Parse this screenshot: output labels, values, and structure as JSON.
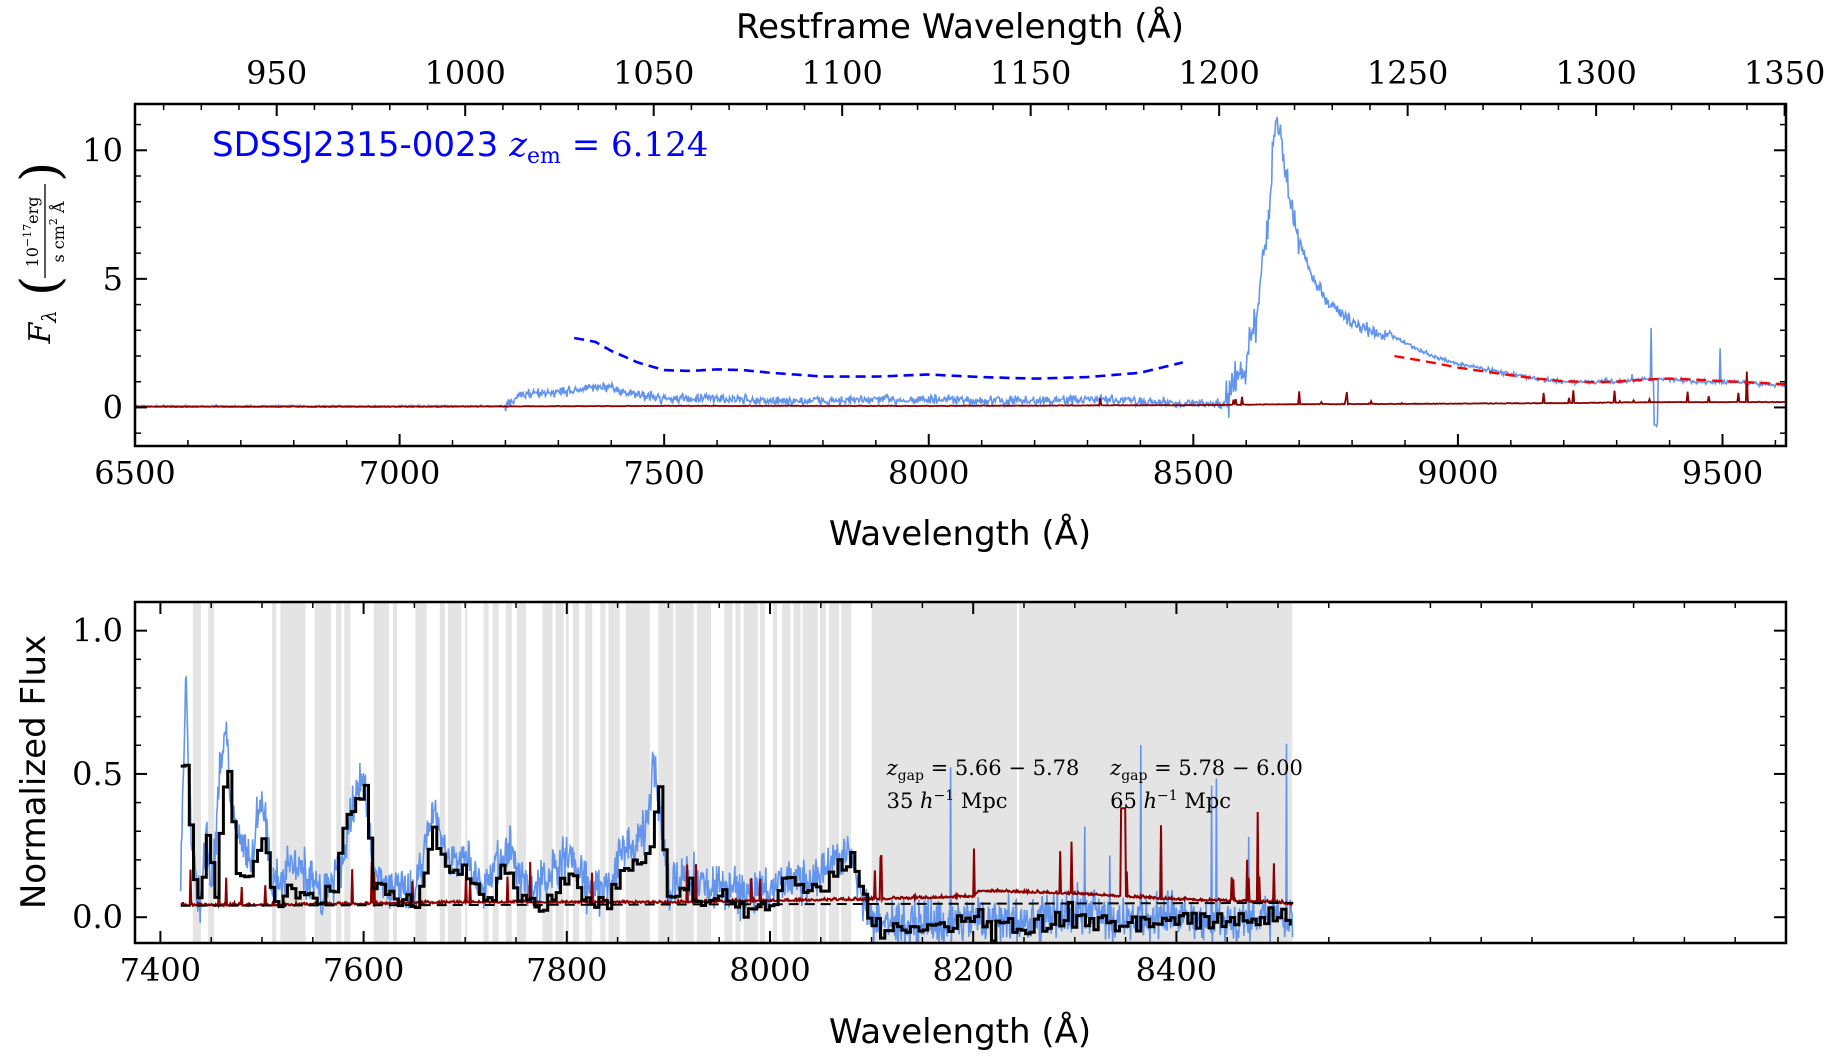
{
  "chart_data": [
    {
      "type": "line",
      "xlabel": "Wavelength (Å)",
      "top_xlabel": "Restframe Wavelength (Å)",
      "ylabel": "F_λ (10^-17 erg / s cm² Å)",
      "ylabel_parts": {
        "main": "F",
        "sub": "λ",
        "num": "10",
        "num_exp": "−17",
        "num_unit": "erg",
        "den": "s cm",
        "den_exp": "2",
        "den_unit": "Å"
      },
      "xlim": [
        6500,
        9620
      ],
      "ylim": [
        -1.5,
        11.8
      ],
      "xticks": [
        6500,
        7000,
        7500,
        8000,
        8500,
        9000,
        9500
      ],
      "yticks": [
        0,
        5,
        10
      ],
      "top_xticks": [
        950,
        1000,
        1050,
        1100,
        1150,
        1200,
        1250,
        1300,
        1350
      ],
      "redshift": 6.124,
      "annotation": {
        "name": "SDSSJ2315-0023",
        "label": "z",
        "sub": "em",
        "eq": " = 6.124"
      },
      "colors": {
        "flux": "#6495ed",
        "error": "#8b0000",
        "continuum_fit": "#0000ff",
        "red_fit": "#ff0000"
      },
      "series": [
        {
          "role": "flux",
          "x": [
            6500,
            7200,
            7230,
            7300,
            7380,
            7450,
            7500,
            7600,
            7700,
            7800,
            7900,
            8000,
            8100,
            8200,
            8300,
            8400,
            8500,
            8560,
            8580,
            8600,
            8620,
            8640,
            8655,
            8665,
            8680,
            8700,
            8720,
            8750,
            8800,
            8850,
            8870,
            8900,
            8950,
            9000,
            9050,
            9100,
            9150,
            9200,
            9250,
            9300,
            9350,
            9400,
            9450,
            9500,
            9550,
            9620
          ],
          "y": [
            0.05,
            0.05,
            0.5,
            0.6,
            0.8,
            0.5,
            0.35,
            0.35,
            0.25,
            0.25,
            0.3,
            0.3,
            0.25,
            0.25,
            0.3,
            0.25,
            0.15,
            0.15,
            1.0,
            1.8,
            3.5,
            7.0,
            11.2,
            10.6,
            8.2,
            6.5,
            5.3,
            4.2,
            3.3,
            2.8,
            2.9,
            2.5,
            2.0,
            1.7,
            1.5,
            1.3,
            1.1,
            1.0,
            1.0,
            1.0,
            1.1,
            1.1,
            1.0,
            1.0,
            0.95,
            0.85
          ]
        },
        {
          "role": "error",
          "x": [
            6500,
            7000,
            7500,
            8000,
            8500,
            8600,
            8700,
            8800,
            9000,
            9200,
            9400,
            9620
          ],
          "y": [
            0.02,
            0.02,
            0.05,
            0.05,
            0.08,
            0.1,
            0.12,
            0.12,
            0.14,
            0.16,
            0.2,
            0.2
          ]
        },
        {
          "role": "continuum_fit",
          "x": [
            7330,
            7370,
            7400,
            7450,
            7500,
            7550,
            7600,
            7650,
            7700,
            7800,
            7900,
            8000,
            8100,
            8200,
            8300,
            8400,
            8480
          ],
          "y": [
            2.7,
            2.55,
            2.2,
            1.75,
            1.45,
            1.42,
            1.48,
            1.45,
            1.35,
            1.2,
            1.2,
            1.28,
            1.18,
            1.12,
            1.18,
            1.35,
            1.75
          ]
        },
        {
          "role": "red_fit",
          "x": [
            8880,
            8950,
            9000,
            9050,
            9100,
            9150,
            9200,
            9250,
            9300,
            9350,
            9400,
            9450,
            9500,
            9550,
            9620
          ],
          "y": [
            2.0,
            1.75,
            1.55,
            1.4,
            1.25,
            1.12,
            1.02,
            0.98,
            1.0,
            1.08,
            1.12,
            1.08,
            1.02,
            0.98,
            0.9
          ]
        }
      ]
    },
    {
      "type": "line",
      "xlabel": "Wavelength (Å)",
      "ylabel": "Normalized Flux",
      "xlim": [
        7375,
        9000
      ],
      "ylim": [
        -0.09,
        1.1
      ],
      "xticks": [
        7400,
        7600,
        7800,
        8000,
        8200,
        8400
      ],
      "yticks": [
        0.0,
        0.5,
        1.0
      ],
      "ytick_labels": [
        "0.0",
        "0.5",
        "1.0"
      ],
      "colors": {
        "flux": "#6495ed",
        "binned": "#000000",
        "error": "#8b0000",
        "mean": "#000000",
        "shade": "#e4e4e4"
      },
      "gaps": [
        {
          "label": "z",
          "sub": "gap",
          "range": " = 5.66 − 5.78",
          "scale": "35 ",
          "scale_h": "h",
          "scale_exp": "−1",
          "scale_unit": " Mpc",
          "x_label": 8100
        },
        {
          "label": "z",
          "sub": "gap",
          "range": " = 5.78 − 6.00",
          "scale": "65 ",
          "scale_h": "h",
          "scale_exp": "−1",
          "scale_unit": " Mpc",
          "x_label": 8320
        }
      ],
      "shaded": [
        [
          7432,
          7440
        ],
        [
          7447,
          7453
        ],
        [
          7510,
          7514
        ],
        [
          7518,
          7543
        ],
        [
          7552,
          7568
        ],
        [
          7573,
          7578
        ],
        [
          7581,
          7587
        ],
        [
          7610,
          7625
        ],
        [
          7629,
          7633
        ],
        [
          7651,
          7662
        ],
        [
          7675,
          7680
        ],
        [
          7683,
          7696
        ],
        [
          7700,
          7702
        ],
        [
          7718,
          7723
        ],
        [
          7727,
          7733
        ],
        [
          7740,
          7746
        ],
        [
          7751,
          7760
        ],
        [
          7776,
          7786
        ],
        [
          7789,
          7797
        ],
        [
          7799,
          7802
        ],
        [
          7806,
          7812
        ],
        [
          7818,
          7825
        ],
        [
          7833,
          7838
        ],
        [
          7841,
          7852
        ],
        [
          7858,
          7882
        ],
        [
          7890,
          7905
        ],
        [
          7907,
          7925
        ],
        [
          7928,
          7942
        ],
        [
          7955,
          7963
        ],
        [
          7966,
          7971
        ],
        [
          7974,
          7988
        ],
        [
          7990,
          7995
        ],
        [
          8003,
          8007
        ],
        [
          8012,
          8020
        ],
        [
          8023,
          8030
        ],
        [
          8032,
          8047
        ],
        [
          8049,
          8055
        ],
        [
          8058,
          8068
        ],
        [
          8070,
          8080
        ],
        [
          8100,
          8243
        ],
        [
          8245,
          8514
        ]
      ],
      "mean_level": {
        "x": [
          7420,
          8515
        ],
        "y": [
          0.04,
          0.05
        ]
      },
      "series": [
        {
          "role": "flux",
          "x": [
            7420,
            7425,
            7430,
            7435,
            7440,
            7445,
            7450,
            7460,
            7465,
            7470,
            7480,
            7490,
            7500,
            7510,
            7530,
            7560,
            7580,
            7590,
            7600,
            7610,
            7630,
            7650,
            7670,
            7680,
            7700,
            7720,
            7740,
            7760,
            7780,
            7800,
            7820,
            7840,
            7860,
            7880,
            7885,
            7900,
            7920,
            7940,
            7960,
            7980,
            8000,
            8020,
            8040,
            8060,
            8080,
            8100,
            8150,
            8200,
            8250,
            8300,
            8350,
            8400,
            8450,
            8500,
            8515
          ],
          "y": [
            0.15,
            0.8,
            0.3,
            0.1,
            0.05,
            0.3,
            0.1,
            0.55,
            0.65,
            0.35,
            0.25,
            0.2,
            0.45,
            0.1,
            0.2,
            0.08,
            0.2,
            0.4,
            0.5,
            0.15,
            0.12,
            0.08,
            0.4,
            0.2,
            0.2,
            0.1,
            0.25,
            0.12,
            0.1,
            0.22,
            0.1,
            0.1,
            0.25,
            0.3,
            0.55,
            0.1,
            0.15,
            0.1,
            0.12,
            0.08,
            0.1,
            0.15,
            0.12,
            0.2,
            0.22,
            -0.02,
            -0.03,
            0.0,
            -0.02,
            0.02,
            -0.01,
            0.0,
            -0.02,
            0.01,
            -0.02
          ]
        },
        {
          "role": "binned",
          "x": [
            7420,
            7425,
            7430,
            7435,
            7440,
            7445,
            7450,
            7455,
            7460,
            7465,
            7470,
            7475,
            7480,
            7490,
            7500,
            7510,
            7530,
            7550,
            7570,
            7580,
            7590,
            7600,
            7610,
            7630,
            7650,
            7670,
            7680,
            7700,
            7720,
            7740,
            7760,
            7780,
            7800,
            7820,
            7840,
            7860,
            7880,
            7890,
            7900,
            7920,
            7940,
            7960,
            7980,
            8000,
            8020,
            8040,
            8060,
            8080,
            8100,
            8150,
            8200,
            8250,
            8300,
            8350,
            8400,
            8450,
            8500,
            8515
          ],
          "y": [
            0.55,
            0.55,
            0.2,
            0.05,
            0.12,
            0.3,
            0.15,
            0.1,
            0.42,
            0.55,
            0.35,
            0.15,
            0.12,
            0.15,
            0.3,
            0.05,
            0.1,
            0.05,
            0.08,
            0.3,
            0.4,
            0.44,
            0.1,
            0.08,
            0.05,
            0.3,
            0.18,
            0.15,
            0.05,
            0.18,
            0.05,
            0.04,
            0.15,
            0.05,
            0.06,
            0.18,
            0.22,
            0.45,
            0.05,
            0.1,
            0.05,
            0.08,
            0.02,
            0.06,
            0.12,
            0.07,
            0.15,
            0.2,
            -0.03,
            -0.04,
            -0.02,
            -0.05,
            0.01,
            -0.04,
            -0.01,
            -0.03,
            0.0,
            -0.02
          ]
        },
        {
          "role": "error",
          "x": [
            7420,
            7500,
            7600,
            7700,
            7800,
            7900,
            8000,
            8100,
            8200,
            8205,
            8300,
            8400,
            8500,
            8515
          ],
          "y": [
            0.04,
            0.04,
            0.045,
            0.05,
            0.05,
            0.05,
            0.055,
            0.06,
            0.07,
            0.09,
            0.08,
            0.06,
            0.05,
            0.04
          ]
        }
      ]
    }
  ]
}
